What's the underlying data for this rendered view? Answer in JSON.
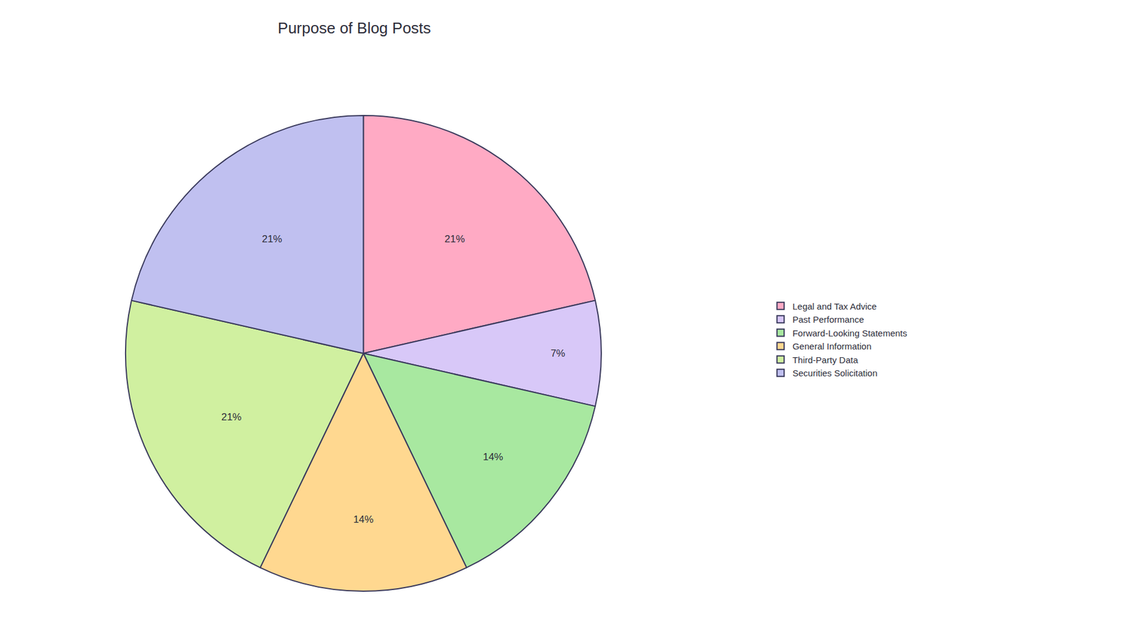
{
  "chart_data": {
    "type": "pie",
    "title": "Purpose of Blog Posts",
    "categories": [
      "Legal and Tax Advice",
      "Past Performance",
      "Forward-Looking Statements",
      "General Information",
      "Third-Party Data",
      "Securities Solicitation"
    ],
    "values": [
      21,
      7,
      14,
      14,
      21,
      21
    ],
    "value_labels": [
      "21%",
      "7%",
      "14%",
      "14%",
      "21%",
      "21%"
    ],
    "colors": [
      "#ffaac4",
      "#d8c8f8",
      "#a8e8a0",
      "#ffd890",
      "#d0f0a0",
      "#c0c0f0"
    ],
    "data_labels": true,
    "legend": "right"
  }
}
